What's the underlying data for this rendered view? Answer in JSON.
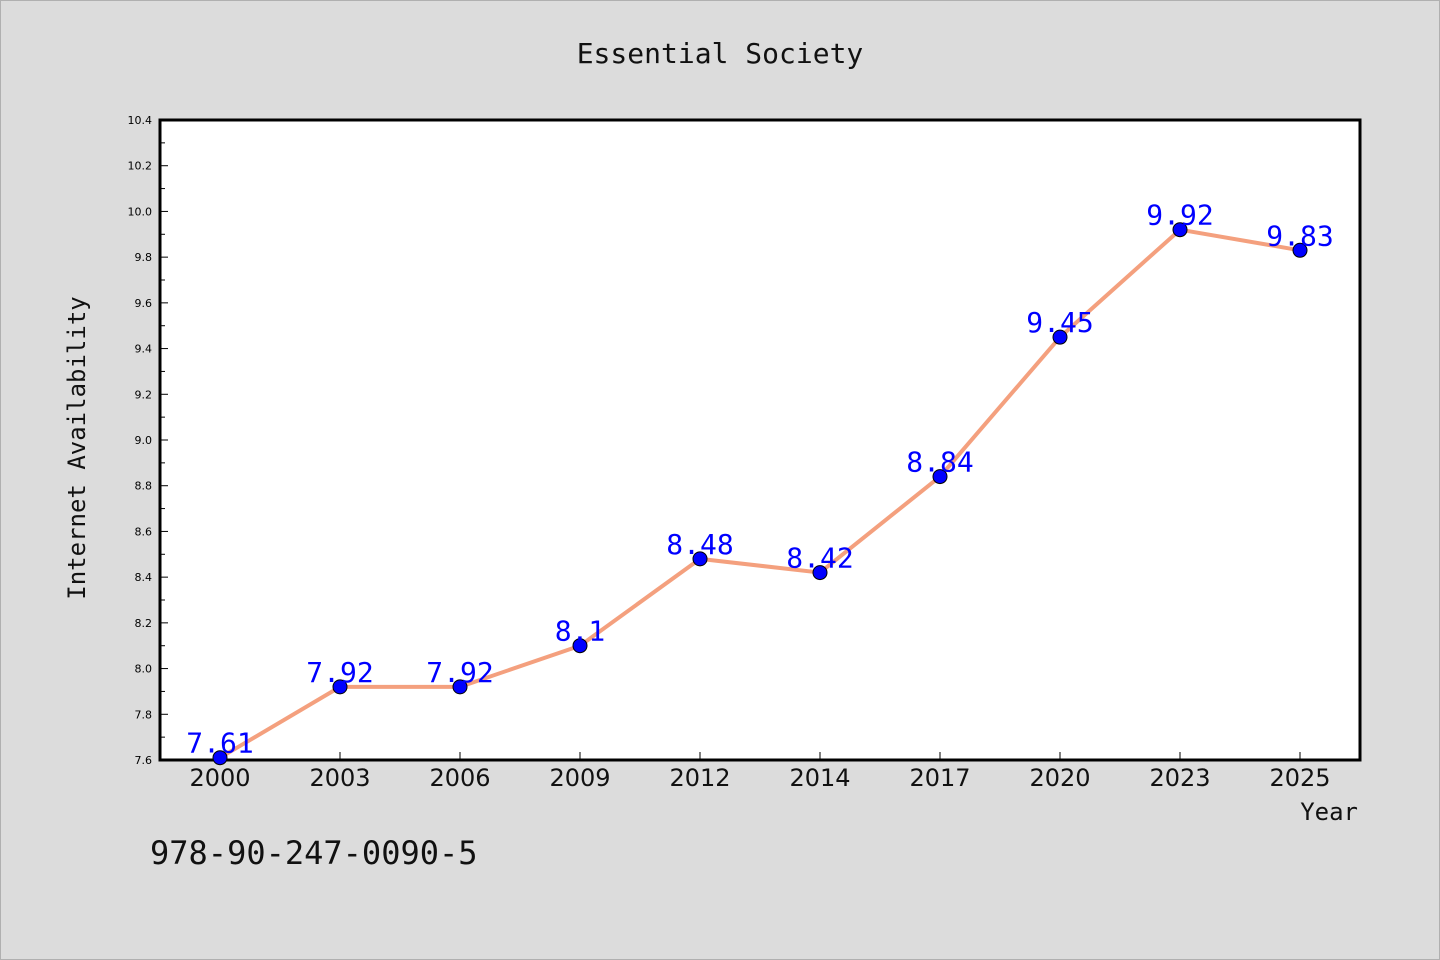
{
  "chart_data": {
    "type": "line",
    "title": "Essential Society",
    "xlabel": "Year",
    "ylabel": "Internet Availability",
    "categories": [
      "2000",
      "2003",
      "2006",
      "2009",
      "2012",
      "2014",
      "2017",
      "2020",
      "2023",
      "2025"
    ],
    "series": [
      {
        "values": [
          7.61,
          7.92,
          7.92,
          8.1,
          8.48,
          8.42,
          8.84,
          9.45,
          9.92,
          9.83
        ],
        "data_labels": [
          "7.61",
          "7.92",
          "7.92",
          "8.1",
          "8.48",
          "8.42",
          "8.84",
          "9.45",
          "9.92",
          "9.83"
        ],
        "line_color": "#f4a07e",
        "marker_color": "#0000ff"
      }
    ],
    "ylim": [
      7.6,
      10.4
    ],
    "yticks": [
      "7.6",
      "7.8",
      "8.0",
      "8.2",
      "8.4",
      "8.6",
      "8.8",
      "9.0",
      "9.2",
      "9.4",
      "9.6",
      "9.8",
      "10.0",
      "10.2",
      "10.4"
    ],
    "grid": false,
    "legend": "none"
  },
  "annotation": "978-90-247-0090-5",
  "colors": {
    "background": "#dcdcdc",
    "plot_background": "#ffffff",
    "label_color": "#0000ff"
  }
}
